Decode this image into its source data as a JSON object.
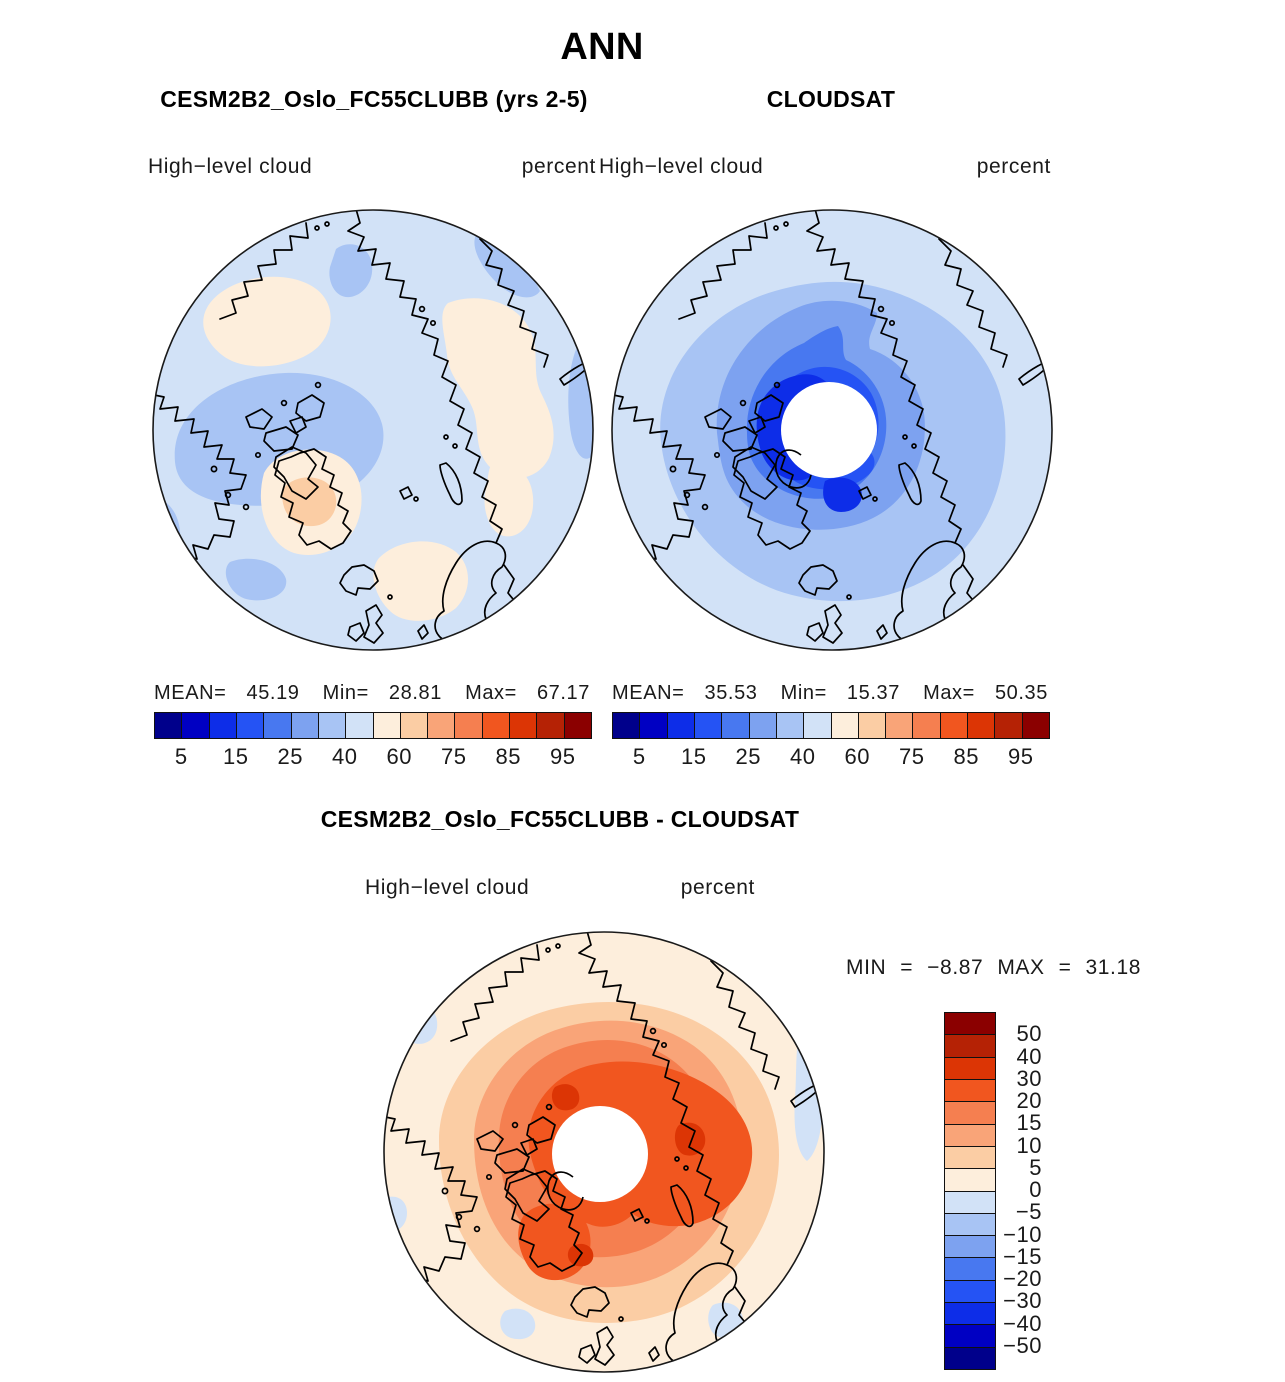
{
  "title": "ANN",
  "panels": {
    "model": {
      "title": "CESM2B2_Oslo_FC55CLUBB (yrs 2-5)",
      "variable": "High−level cloud",
      "units": "percent",
      "stats": [
        {
          "label": "MEAN=",
          "value": "45.19"
        },
        {
          "label": "Min=",
          "value": "28.81"
        },
        {
          "label": "Max=",
          "value": "67.17"
        }
      ]
    },
    "obs": {
      "title": "CLOUDSAT",
      "variable": "High−level cloud",
      "units": "percent",
      "stats": [
        {
          "label": "MEAN=",
          "value": "35.53"
        },
        {
          "label": "Min=",
          "value": "15.37"
        },
        {
          "label": "Max=",
          "value": "50.35"
        }
      ]
    },
    "diff": {
      "title": "CESM2B2_Oslo_FC55CLUBB - CLOUDSAT",
      "variable": "High−level cloud",
      "units": "percent",
      "minmax": [
        {
          "label": "MIN",
          "eq": "=",
          "value": "−8.87"
        },
        {
          "label": "MAX",
          "eq": "=",
          "value": "31.18"
        }
      ]
    }
  },
  "colorbar": {
    "palette": [
      "#00008B",
      "#0000C3",
      "#0D2DE8",
      "#2553F4",
      "#4878F0",
      "#7DA2F0",
      "#A8C4F4",
      "#D2E2F7",
      "#FDEEDC",
      "#FBCDA4",
      "#F9A478",
      "#F57F50",
      "#F1561F",
      "#DC3505",
      "#B52205",
      "#8B0000"
    ],
    "horizontal_ticks": [
      {
        "label": "5",
        "boundary": 1
      },
      {
        "label": "15",
        "boundary": 3
      },
      {
        "label": "25",
        "boundary": 5
      },
      {
        "label": "40",
        "boundary": 7
      },
      {
        "label": "60",
        "boundary": 9
      },
      {
        "label": "75",
        "boundary": 11
      },
      {
        "label": "85",
        "boundary": 13
      },
      {
        "label": "95",
        "boundary": 15
      }
    ],
    "vertical_labels": [
      {
        "label": "50",
        "boundary": 1
      },
      {
        "label": "40",
        "boundary": 2
      },
      {
        "label": "30",
        "boundary": 3
      },
      {
        "label": "20",
        "boundary": 4
      },
      {
        "label": "15",
        "boundary": 5
      },
      {
        "label": "10",
        "boundary": 6
      },
      {
        "label": "5",
        "boundary": 7
      },
      {
        "label": "0",
        "boundary": 8
      },
      {
        "label": "−5",
        "boundary": 9
      },
      {
        "label": "−10",
        "boundary": 10
      },
      {
        "label": "−15",
        "boundary": 11
      },
      {
        "label": "−20",
        "boundary": 12
      },
      {
        "label": "−30",
        "boundary": 13
      },
      {
        "label": "−40",
        "boundary": 14
      },
      {
        "label": "−50",
        "boundary": 15
      }
    ]
  },
  "colors": {
    "coastline": "#000000",
    "pole_hole": "#FFFFFF",
    "map_outline": "#1a1a1a",
    "background": "#FFFFFF"
  },
  "chart_data": [
    {
      "type": "heatmap",
      "panel": "top-left",
      "title": "CESM2B2_Oslo_FC55CLUBB (yrs 2-5)",
      "variable": "High-level cloud",
      "units": "percent",
      "projection": "north-polar-stereographic",
      "season": "ANN",
      "stats": {
        "mean": 45.19,
        "min": 28.81,
        "max": 67.17
      },
      "contour_levels": [
        5,
        10,
        15,
        20,
        25,
        30,
        40,
        50,
        60,
        70,
        75,
        80,
        85,
        90,
        95
      ],
      "labeled_levels": [
        5,
        15,
        25,
        40,
        60,
        75,
        85,
        95
      ],
      "legend_position": "bottom"
    },
    {
      "type": "heatmap",
      "panel": "top-right",
      "title": "CLOUDSAT",
      "variable": "High-level cloud",
      "units": "percent",
      "projection": "north-polar-stereographic",
      "season": "ANN",
      "stats": {
        "mean": 35.53,
        "min": 15.37,
        "max": 50.35
      },
      "contour_levels": [
        5,
        10,
        15,
        20,
        25,
        30,
        40,
        50,
        60,
        70,
        75,
        80,
        85,
        90,
        95
      ],
      "labeled_levels": [
        5,
        15,
        25,
        40,
        60,
        75,
        85,
        95
      ],
      "legend_position": "bottom",
      "notes": "white disc at pole = no satellite coverage"
    },
    {
      "type": "heatmap",
      "panel": "bottom",
      "title": "CESM2B2_Oslo_FC55CLUBB - CLOUDSAT",
      "variable": "High-level cloud difference",
      "units": "percent",
      "projection": "north-polar-stereographic",
      "season": "ANN",
      "stats": {
        "min": -8.87,
        "max": 31.18
      },
      "contour_levels": [
        -50,
        -40,
        -30,
        -20,
        -15,
        -10,
        -5,
        0,
        5,
        10,
        15,
        20,
        30,
        40,
        50
      ],
      "legend_position": "right"
    }
  ]
}
